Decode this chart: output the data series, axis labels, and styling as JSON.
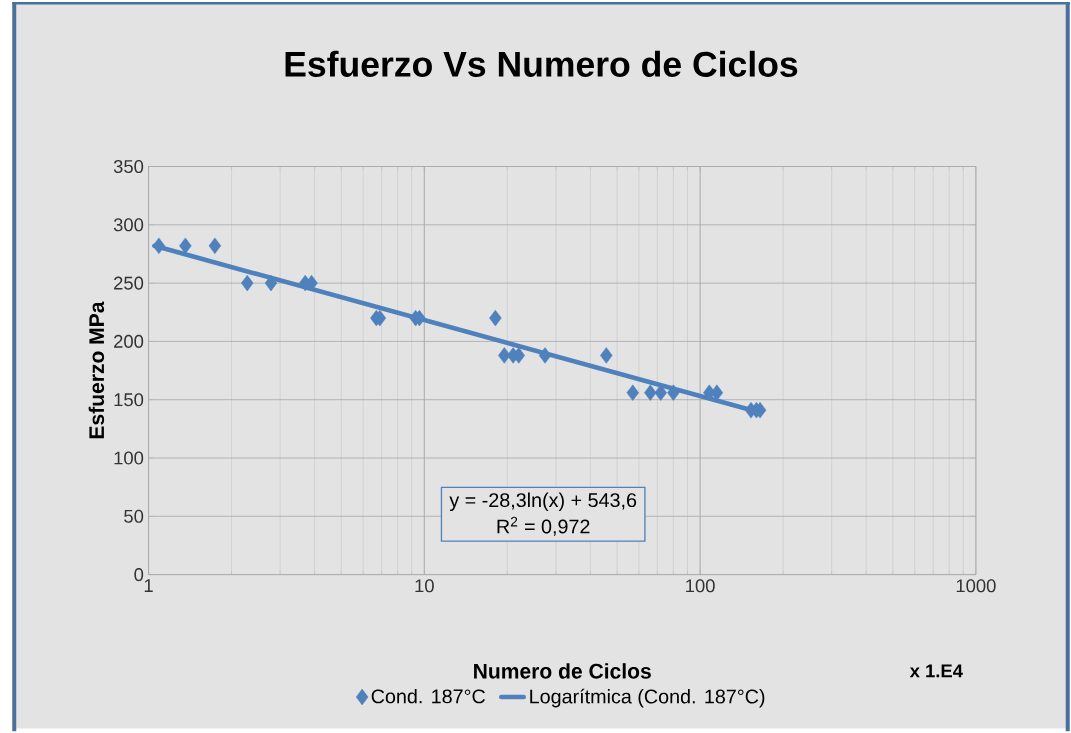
{
  "chart_data": {
    "type": "scatter",
    "title": "Esfuerzo Vs Numero de Ciclos",
    "xlabel": "Numero de Ciclos",
    "ylabel": "Esfuerzo MPa",
    "series": [
      {
        "name": "Cond. 187°C",
        "marker": "diamond",
        "color": "#4f81bd",
        "x": [
          1.09,
          1.36,
          1.74,
          2.28,
          2.78,
          3.7,
          3.9,
          6.7,
          6.9,
          9.3,
          9.6,
          18.1,
          19.5,
          21,
          22,
          27.4,
          45.7,
          57,
          66,
          72,
          80,
          108,
          115,
          153,
          160,
          165
        ],
        "values": [
          282,
          282,
          282,
          250,
          250,
          250,
          250,
          220,
          220,
          220,
          220,
          220,
          188,
          188,
          188,
          188,
          188,
          156,
          156,
          156,
          156,
          156,
          156,
          141,
          141,
          141
        ]
      },
      {
        "name": "Logarítmica (Cond. 187°C)",
        "type": "line",
        "marker": "none",
        "color": "#4f81bd",
        "x": [
          1.05,
          165
        ],
        "values": [
          282,
          139
        ]
      }
    ],
    "xlim": [
      1,
      1000
    ],
    "xticks": [
      1,
      10,
      100,
      1000
    ],
    "ylim": [
      0,
      350
    ],
    "yticks": [
      0,
      50,
      100,
      150,
      200,
      250,
      300,
      350
    ],
    "log": "x",
    "grid": true,
    "legend": "bottom",
    "annotations": [
      "y = -28,3ln(x) + 543,6",
      "R$^{2}$ = 0,972",
      "x 1.E4"
    ]
  }
}
